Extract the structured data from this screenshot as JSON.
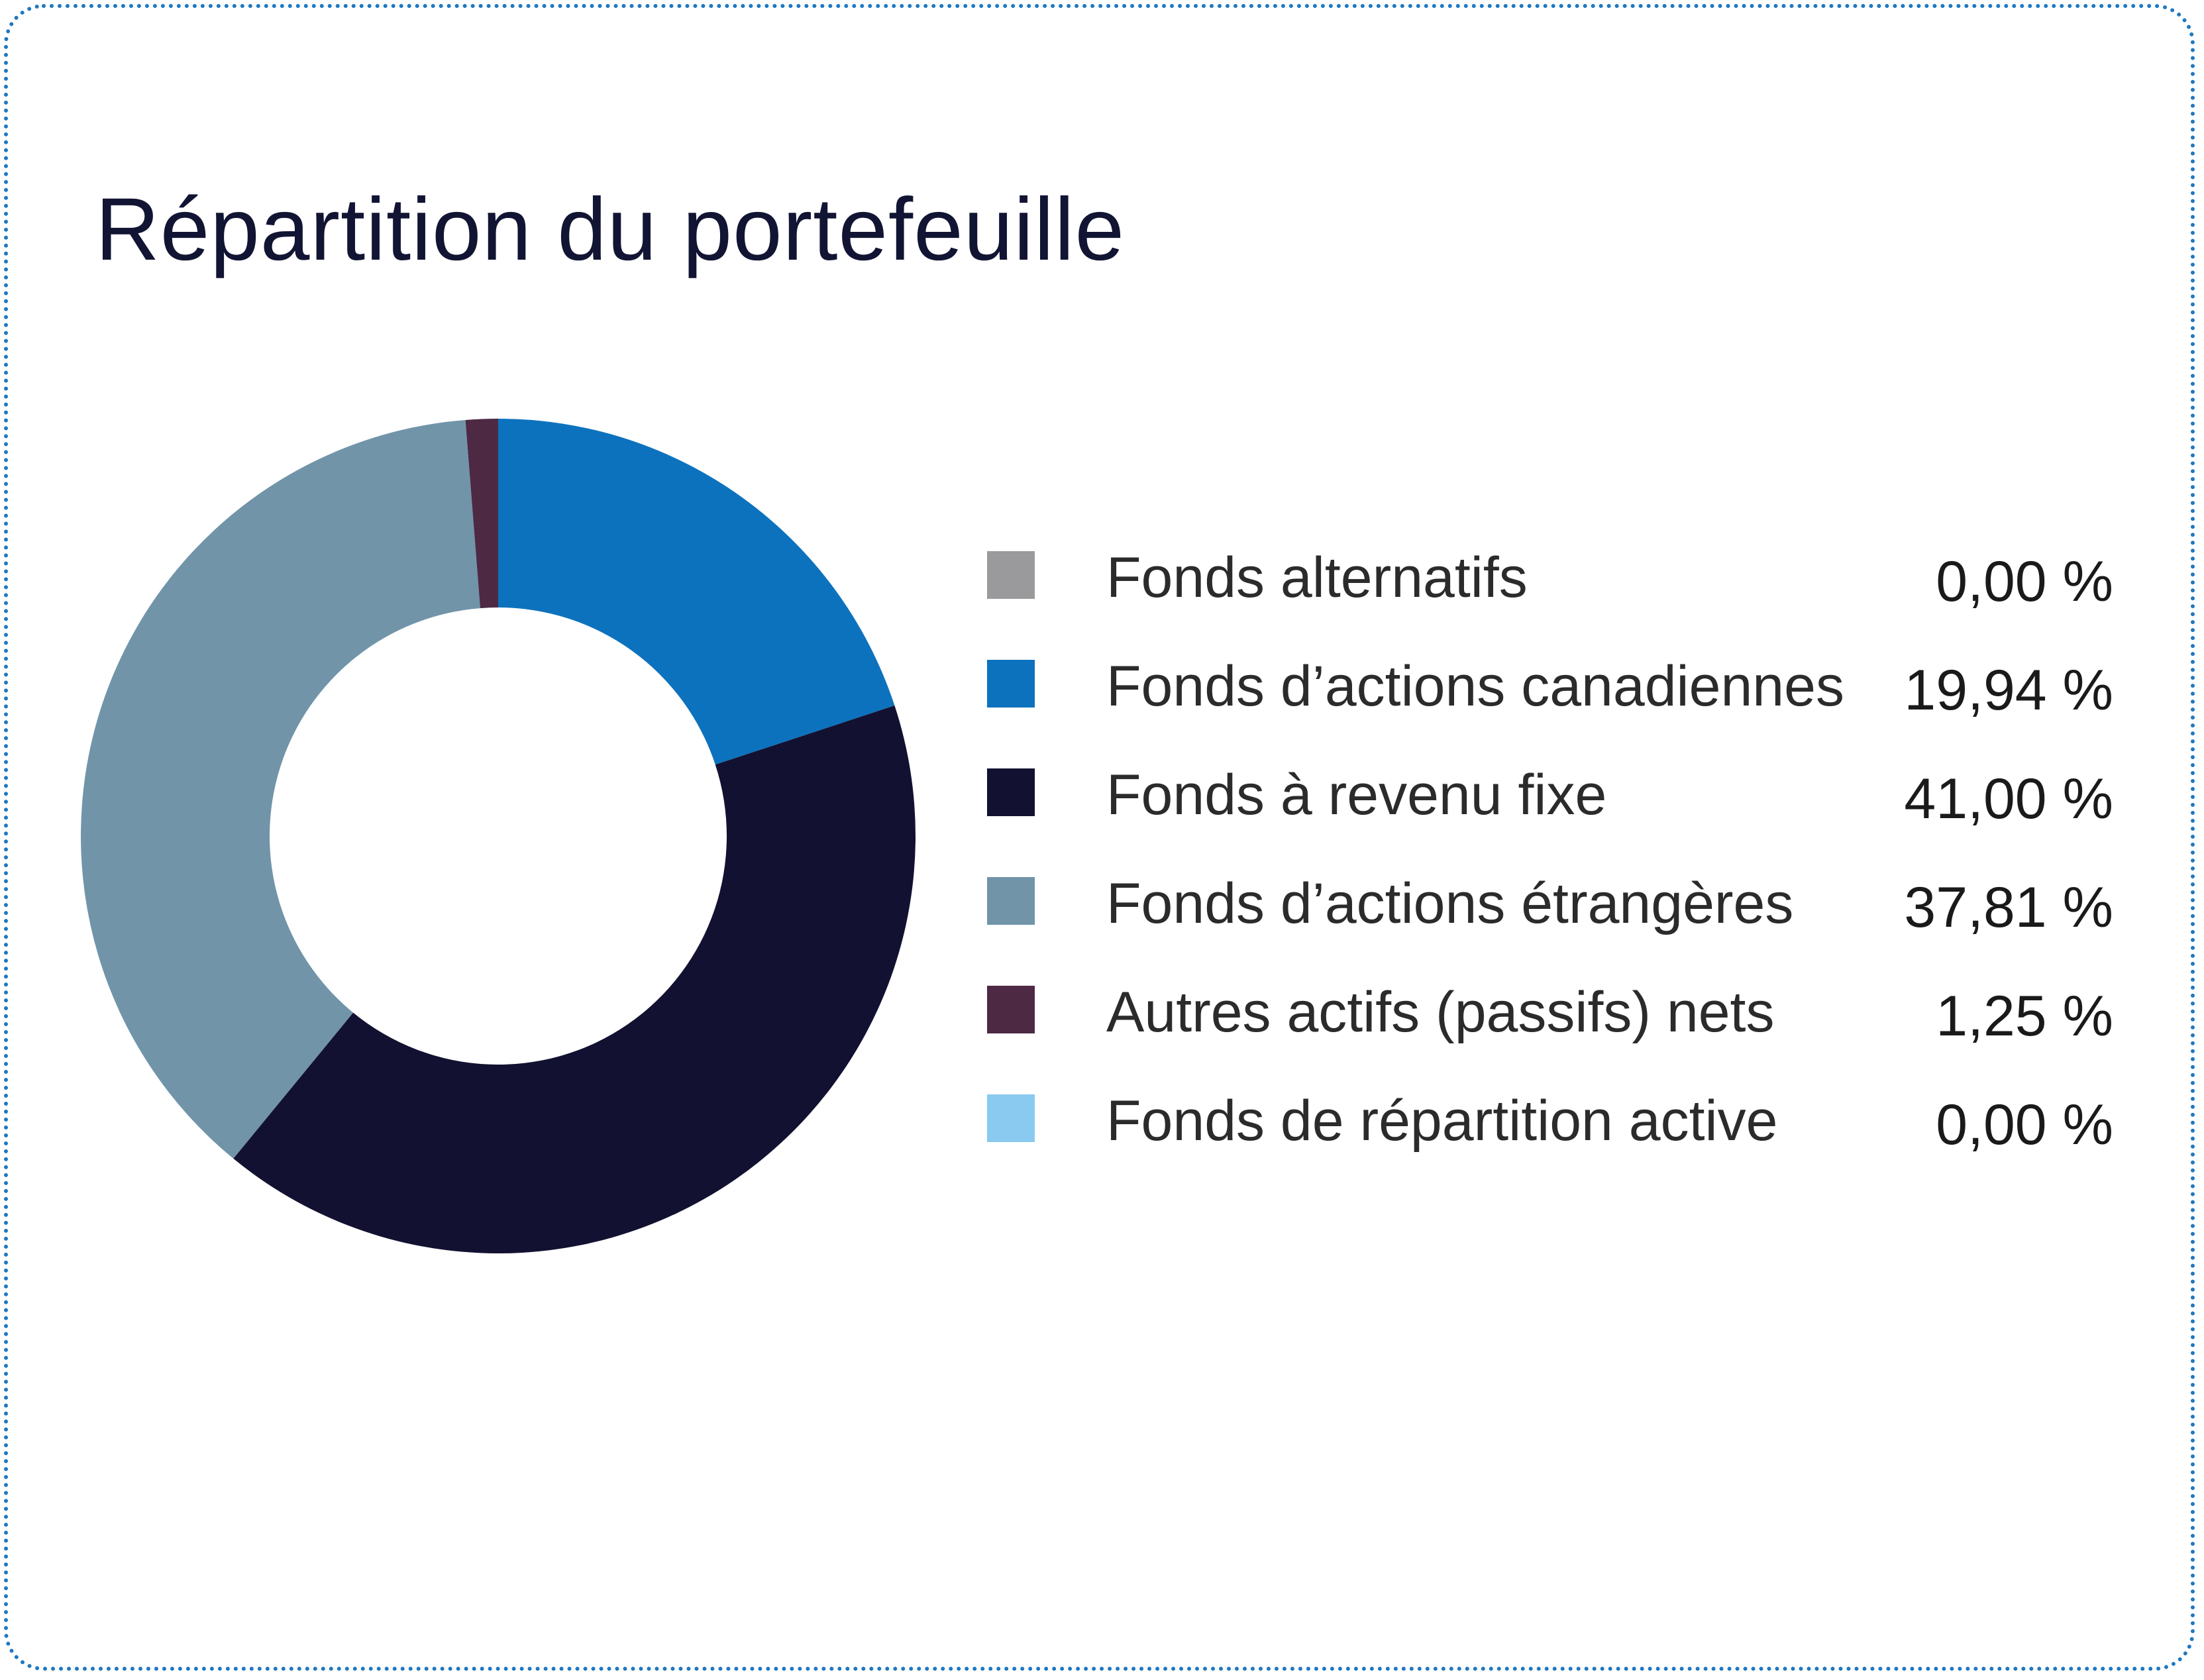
{
  "title": "Répartition du portefeuille",
  "chart_data": {
    "type": "pie",
    "donut": true,
    "title": "Répartition du portefeuille",
    "legend_position": "right",
    "slices": [
      {
        "label": "Fonds alternatifs",
        "value": 0.0,
        "display": "0,00 %",
        "color": "#9a9a9c"
      },
      {
        "label": "Fonds d’actions canadiennes",
        "value": 19.94,
        "display": "19,94 %",
        "color": "#0d72bd"
      },
      {
        "label": "Fonds à revenu fixe",
        "value": 41.0,
        "display": "41,00 %",
        "color": "#121131"
      },
      {
        "label": "Fonds d’actions étrangères",
        "value": 37.81,
        "display": "37,81 %",
        "color": "#7194a9"
      },
      {
        "label": "Autres actifs (passifs) nets",
        "value": 1.25,
        "display": "1,25 %",
        "color": "#4d2944"
      },
      {
        "label": "Fonds de répartition active",
        "value": 0.0,
        "display": "0,00 %",
        "color": "#8acaf0"
      }
    ]
  }
}
